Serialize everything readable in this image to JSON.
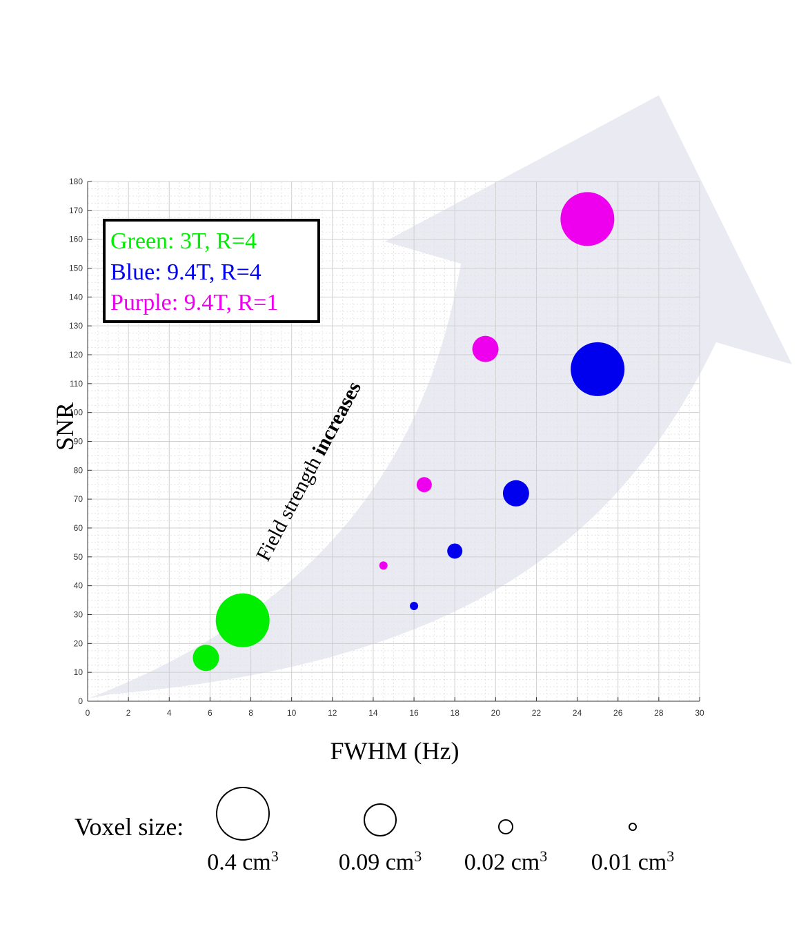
{
  "chart_data": {
    "type": "scatter",
    "xlabel": "FWHM (Hz)",
    "ylabel": "SNR",
    "xlim": [
      0,
      30
    ],
    "ylim": [
      0,
      180
    ],
    "x_ticks": [
      0,
      2,
      4,
      6,
      8,
      10,
      12,
      14,
      16,
      18,
      20,
      22,
      24,
      26,
      28,
      30
    ],
    "y_ticks": [
      0,
      10,
      20,
      30,
      40,
      50,
      60,
      70,
      80,
      90,
      100,
      110,
      120,
      130,
      140,
      150,
      160,
      170,
      180
    ],
    "grid": true,
    "legend": {
      "placement": "top-left",
      "entries": [
        {
          "text": "Green: 3T, R=4",
          "color": "#00ee00"
        },
        {
          "text": "Blue: 9.4T, R=4",
          "color": "#0000ee"
        },
        {
          "text": "Purple: 9.4T, R=1",
          "color": "#ee00ee"
        }
      ]
    },
    "annotation": {
      "text_regular": "Field strength ",
      "text_bold": "increases"
    },
    "series": [
      {
        "color": "#00ee00",
        "points": [
          {
            "x": 5.8,
            "y": 15,
            "voxel": 0.09
          },
          {
            "x": 7.6,
            "y": 28,
            "voxel": 0.4
          }
        ]
      },
      {
        "color": "#0000ee",
        "points": [
          {
            "x": 16.0,
            "y": 33,
            "voxel": 0.01
          },
          {
            "x": 18.0,
            "y": 52,
            "voxel": 0.02
          },
          {
            "x": 21.0,
            "y": 72,
            "voxel": 0.09
          },
          {
            "x": 25.0,
            "y": 115,
            "voxel": 0.4
          }
        ]
      },
      {
        "color": "#ee00ee",
        "points": [
          {
            "x": 14.5,
            "y": 47,
            "voxel": 0.01
          },
          {
            "x": 16.5,
            "y": 75,
            "voxel": 0.02
          },
          {
            "x": 19.5,
            "y": 122,
            "voxel": 0.09
          },
          {
            "x": 24.5,
            "y": 167,
            "voxel": 0.4
          }
        ]
      }
    ],
    "size_legend": {
      "title": "Voxel size:",
      "entries": [
        {
          "label": "0.4 cm",
          "sup": "3",
          "voxel": 0.4
        },
        {
          "label": "0.09 cm",
          "sup": "3",
          "voxel": 0.09
        },
        {
          "label": "0.02 cm",
          "sup": "3",
          "voxel": 0.02
        },
        {
          "label": "0.01 cm",
          "sup": "3",
          "voxel": 0.01
        }
      ]
    }
  }
}
